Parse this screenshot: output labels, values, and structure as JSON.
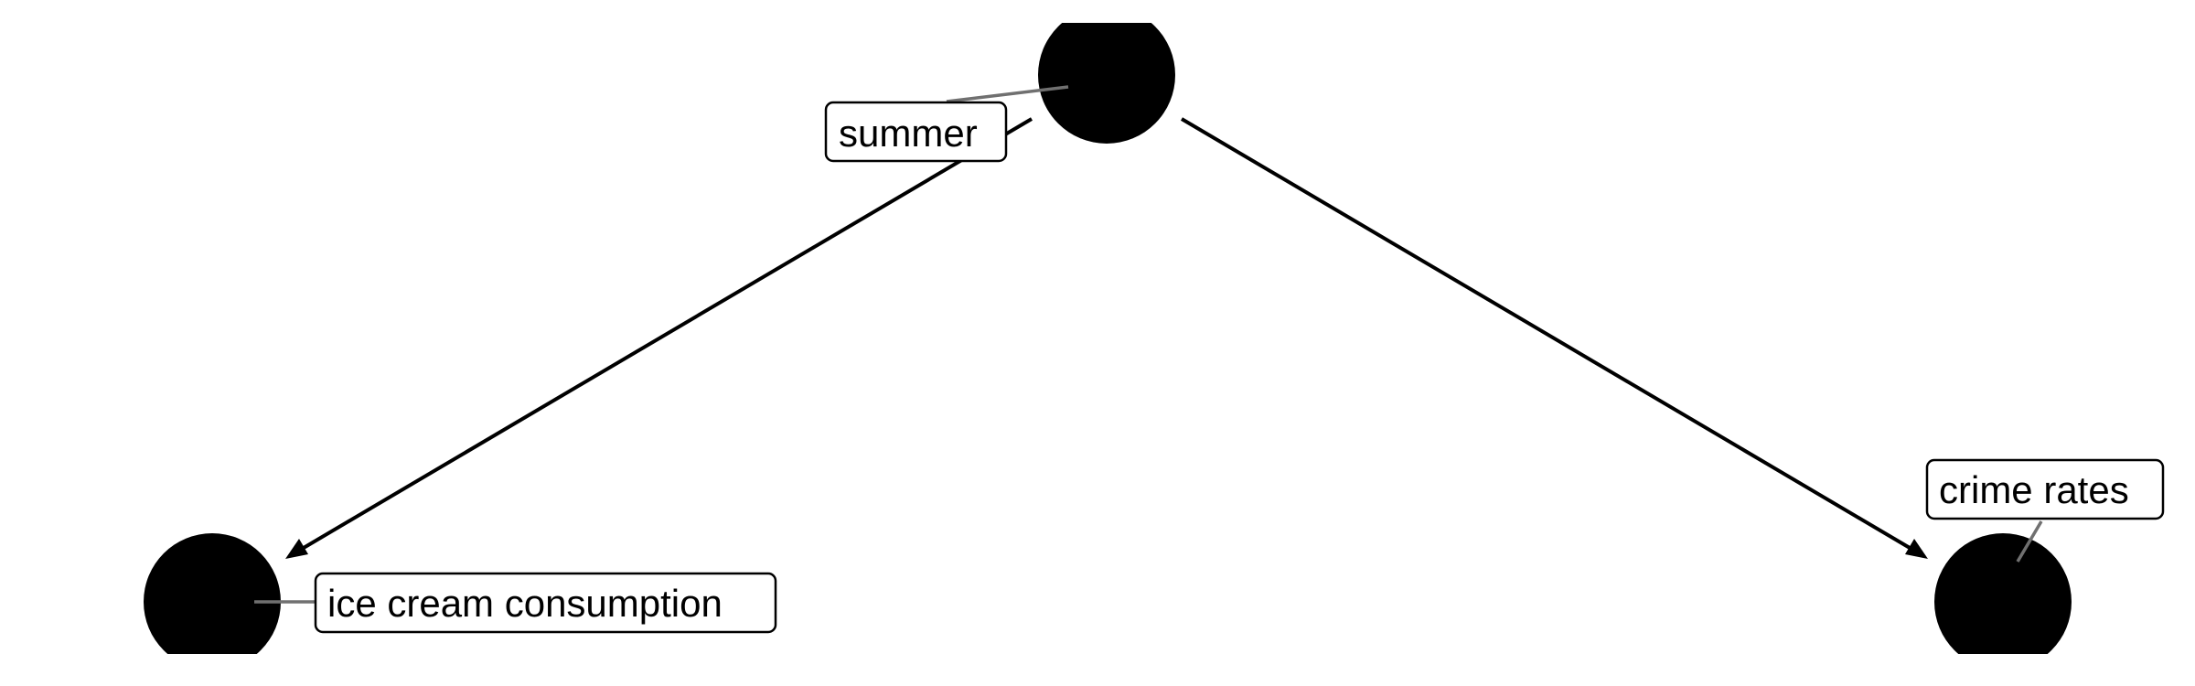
{
  "diagram": {
    "type": "directed-acyclic-graph",
    "nodes": [
      {
        "id": "summer",
        "label": "summer"
      },
      {
        "id": "ice_cream",
        "label": "ice cream consumption"
      },
      {
        "id": "crime",
        "label": "crime rates"
      }
    ],
    "edges": [
      {
        "from": "summer",
        "to": "ice_cream"
      },
      {
        "from": "summer",
        "to": "crime"
      }
    ],
    "colors": {
      "node": "#000000",
      "edge": "#000000",
      "leader": "#707070",
      "label_background": "#ffffff"
    }
  }
}
